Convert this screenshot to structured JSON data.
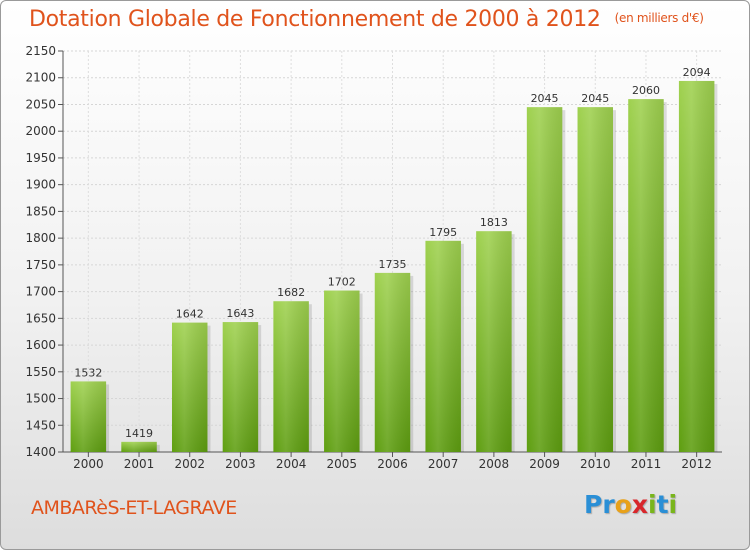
{
  "header": {
    "title": "Dotation Globale de Fonctionnement de 2000 à 2012",
    "subtitle": "(en milliers d'€)"
  },
  "footer": {
    "city": "AMBARèS-ET-LAGRAVE",
    "logo_letters": [
      "P",
      "r",
      "o",
      "x",
      "i",
      "t",
      "i"
    ],
    "logo_colors": [
      "#2a8fd6",
      "#2a8fd6",
      "#e8a11a",
      "#d8262b",
      "#79b51c",
      "#2a8fd6",
      "#79b51c"
    ]
  },
  "colors": {
    "bar_top": "#9fd14f",
    "bar_bottom": "#5e9e10",
    "accent": "#e0531c"
  },
  "chart_data": {
    "type": "bar",
    "title": "Dotation Globale de Fonctionnement de 2000 à 2012",
    "subtitle": "(en milliers d'€)",
    "categories": [
      "2000",
      "2001",
      "2002",
      "2003",
      "2004",
      "2005",
      "2006",
      "2007",
      "2008",
      "2009",
      "2010",
      "2011",
      "2012"
    ],
    "values": [
      1532,
      1419,
      1642,
      1643,
      1682,
      1702,
      1735,
      1795,
      1813,
      2045,
      2045,
      2060,
      2094
    ],
    "ylim": [
      1400,
      2150
    ],
    "yticks": [
      1400,
      1450,
      1500,
      1550,
      1600,
      1650,
      1700,
      1750,
      1800,
      1850,
      1900,
      1950,
      2000,
      2050,
      2100,
      2150
    ],
    "grid": true,
    "data_labels": true
  }
}
